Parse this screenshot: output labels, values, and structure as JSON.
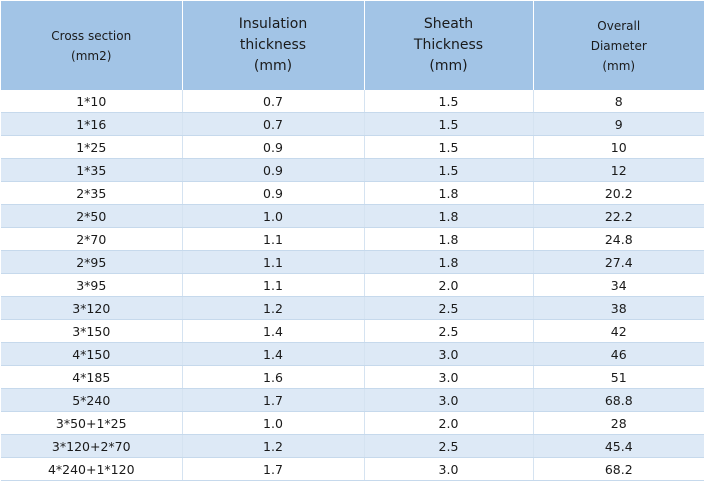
{
  "table": {
    "headers": [
      {
        "lines": [
          "Cross section",
          "(mm2)"
        ]
      },
      {
        "lines": [
          "Insulation",
          "thickness",
          "(mm)"
        ]
      },
      {
        "lines": [
          "Sheath",
          "Thickness",
          "(mm)"
        ]
      },
      {
        "lines": [
          "Overall",
          "Diameter",
          "(mm)"
        ]
      }
    ],
    "rows": [
      [
        "1*10",
        "0.7",
        "1.5",
        "8"
      ],
      [
        "1*16",
        "0.7",
        "1.5",
        "9"
      ],
      [
        "1*25",
        "0.9",
        "1.5",
        "10"
      ],
      [
        "1*35",
        "0.9",
        "1.5",
        "12"
      ],
      [
        "2*35",
        "0.9",
        "1.8",
        "20.2"
      ],
      [
        "2*50",
        "1.0",
        "1.8",
        "22.2"
      ],
      [
        "2*70",
        "1.1",
        "1.8",
        "24.8"
      ],
      [
        "2*95",
        "1.1",
        "1.8",
        "27.4"
      ],
      [
        "3*95",
        "1.1",
        "2.0",
        "34"
      ],
      [
        "3*120",
        "1.2",
        "2.5",
        "38"
      ],
      [
        "3*150",
        "1.4",
        "2.5",
        "42"
      ],
      [
        "4*150",
        "1.4",
        "3.0",
        "46"
      ],
      [
        "4*185",
        "1.6",
        "3.0",
        "51"
      ],
      [
        "5*240",
        "1.7",
        "3.0",
        "68.8"
      ],
      [
        "3*50+1*25",
        "1.0",
        "2.0",
        "28"
      ],
      [
        "3*120+2*70",
        "1.2",
        "2.5",
        "45.4"
      ],
      [
        "4*240+1*120",
        "1.7",
        "3.0",
        "68.2"
      ]
    ]
  }
}
